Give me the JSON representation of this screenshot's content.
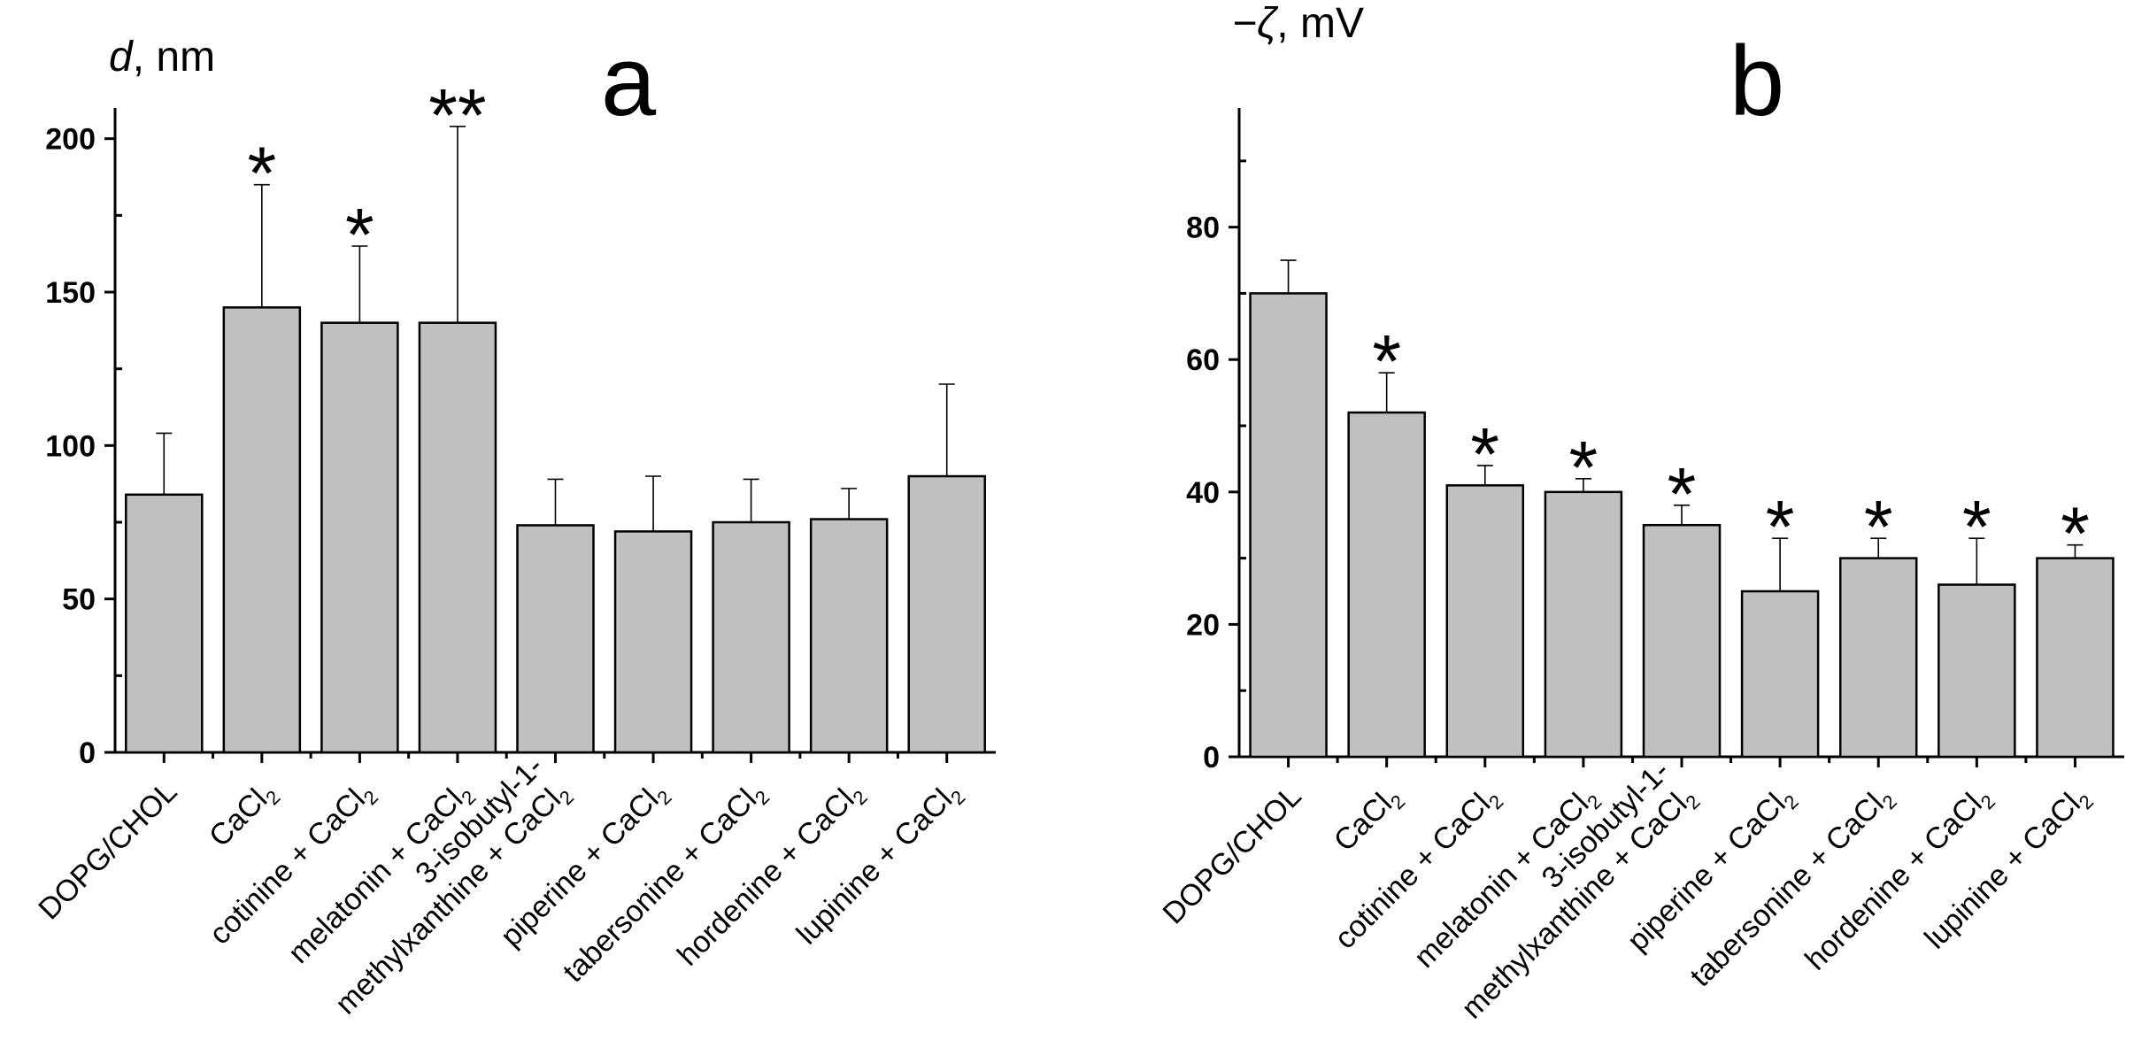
{
  "chart_data": [
    {
      "type": "bar",
      "panel_label": "a",
      "ylabel_symbol": "d",
      "ylabel_unit": ", nm",
      "ylim": [
        0,
        210
      ],
      "yticks": [
        0,
        50,
        100,
        150,
        200
      ],
      "categories": [
        {
          "lines": [
            {
              "text": "DOPG/CHOL"
            }
          ]
        },
        {
          "lines": [
            {
              "text": "CaCl",
              "sub": "2"
            }
          ]
        },
        {
          "lines": [
            {
              "text": "cotinine + CaCl",
              "sub": "2"
            }
          ]
        },
        {
          "lines": [
            {
              "text": "melatonin + CaCl",
              "sub": "2"
            }
          ]
        },
        {
          "lines": [
            {
              "text": "3-isobutyl-1-"
            },
            {
              "text": "methylxanthine + CaCl",
              "sub": "2"
            }
          ]
        },
        {
          "lines": [
            {
              "text": "piperine + CaCl",
              "sub": "2"
            }
          ]
        },
        {
          "lines": [
            {
              "text": "tabersonine + CaCl",
              "sub": "2"
            }
          ]
        },
        {
          "lines": [
            {
              "text": "hordenine + CaCl",
              "sub": "2"
            }
          ]
        },
        {
          "lines": [
            {
              "text": "lupinine + CaCl",
              "sub": "2"
            }
          ]
        }
      ],
      "values": [
        84,
        145,
        140,
        140,
        74,
        72,
        75,
        76,
        90
      ],
      "errors": [
        20,
        40,
        25,
        64,
        15,
        18,
        14,
        10,
        30
      ],
      "significance": [
        "",
        "*",
        "*",
        "**",
        "",
        "",
        "",
        "",
        ""
      ]
    },
    {
      "type": "bar",
      "panel_label": "b",
      "ylabel_symbol": "−ζ",
      "ylabel_unit": ", mV",
      "ylim": [
        0,
        98
      ],
      "yticks": [
        0,
        20,
        40,
        60,
        80
      ],
      "categories": [
        {
          "lines": [
            {
              "text": "DOPG/CHOL"
            }
          ]
        },
        {
          "lines": [
            {
              "text": "CaCl",
              "sub": "2"
            }
          ]
        },
        {
          "lines": [
            {
              "text": "cotinine + CaCl",
              "sub": "2"
            }
          ]
        },
        {
          "lines": [
            {
              "text": "melatonin + CaCl",
              "sub": "2"
            }
          ]
        },
        {
          "lines": [
            {
              "text": "3-isobutyl-1-"
            },
            {
              "text": "methylxanthine + CaCl",
              "sub": "2"
            }
          ]
        },
        {
          "lines": [
            {
              "text": "piperine + CaCl",
              "sub": "2"
            }
          ]
        },
        {
          "lines": [
            {
              "text": "tabersonine + CaCl",
              "sub": "2"
            }
          ]
        },
        {
          "lines": [
            {
              "text": "hordenine + CaCl",
              "sub": "2"
            }
          ]
        },
        {
          "lines": [
            {
              "text": "lupinine + CaCl",
              "sub": "2"
            }
          ]
        }
      ],
      "values": [
        70,
        52,
        41,
        40,
        35,
        25,
        30,
        26,
        30
      ],
      "errors": [
        5,
        6,
        3,
        2,
        3,
        8,
        3,
        7,
        2
      ],
      "significance": [
        "",
        "*",
        "*",
        "*",
        "*",
        "*",
        "*",
        "*",
        "*"
      ]
    }
  ]
}
